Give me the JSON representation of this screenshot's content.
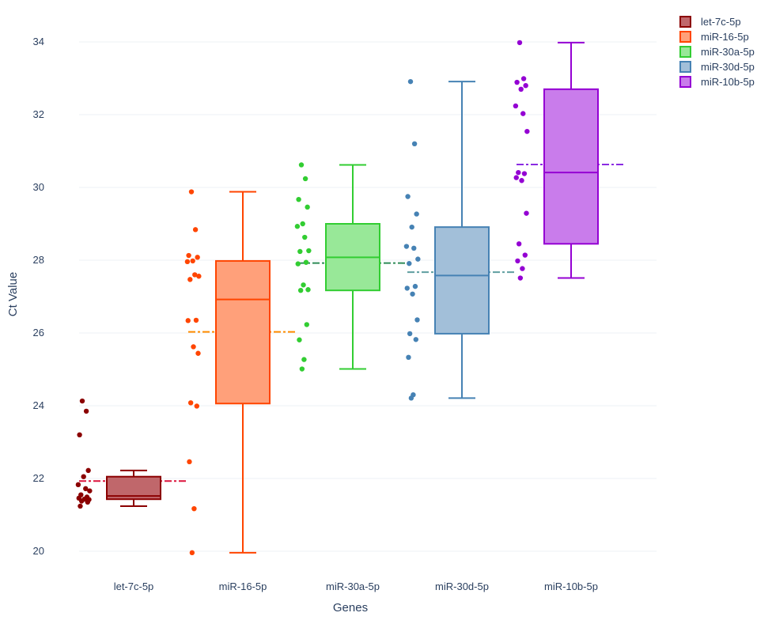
{
  "chart_data": {
    "type": "box",
    "xlabel": "Genes",
    "ylabel": "Ct Value",
    "ylim": [
      19.5,
      34.6
    ],
    "yticks": [
      20,
      22,
      24,
      26,
      28,
      30,
      32,
      34
    ],
    "categories": [
      "let-7c-5p",
      "miR-16-5p",
      "miR-30a-5p",
      "miR-30d-5p",
      "miR-10b-5p"
    ],
    "boxpoints": "all",
    "mean_line": "dash-dot",
    "grid": true,
    "legend": "top-right",
    "series": [
      {
        "name": "let-7c-5p",
        "color": "#8b0000",
        "fill": "#c0676b",
        "mean_color": "#dc143c",
        "stats": {
          "min": 21.24,
          "q1": 21.43,
          "median": 21.52,
          "q3": 22.05,
          "max": 22.22,
          "mean": 21.93
        },
        "points": [
          24.13,
          23.85,
          23.2,
          22.22,
          22.05,
          21.83,
          21.72,
          21.66,
          21.55,
          21.49,
          21.46,
          21.43,
          21.42,
          21.38,
          21.35,
          21.24
        ]
      },
      {
        "name": "miR-16-5p",
        "color": "#ff4500",
        "fill": "#ffa07a",
        "mean_color": "#ff8c00",
        "stats": {
          "min": 19.96,
          "q1": 24.06,
          "median": 26.92,
          "q3": 27.98,
          "max": 29.88,
          "mean": 26.03
        },
        "points": [
          29.88,
          28.84,
          28.13,
          28.08,
          27.98,
          27.96,
          27.6,
          27.56,
          27.47,
          26.35,
          26.34,
          25.62,
          25.44,
          24.08,
          23.99,
          22.46,
          21.17,
          19.96
        ]
      },
      {
        "name": "miR-30a-5p",
        "color": "#32cd32",
        "fill": "#98e898",
        "mean_color": "#2e8b57",
        "stats": {
          "min": 25.01,
          "q1": 27.17,
          "median": 28.08,
          "q3": 29.0,
          "max": 30.62,
          "mean": 27.92
        },
        "points": [
          30.62,
          30.24,
          29.67,
          29.46,
          29.0,
          28.93,
          28.63,
          28.26,
          28.24,
          27.94,
          27.9,
          27.32,
          27.19,
          27.17,
          26.23,
          25.81,
          25.27,
          25.01
        ]
      },
      {
        "name": "miR-30d-5p",
        "color": "#4682b4",
        "fill": "#a2bfd9",
        "mean_color": "#5f9ea0",
        "stats": {
          "min": 24.21,
          "q1": 25.98,
          "median": 27.58,
          "q3": 28.91,
          "max": 32.91,
          "mean": 27.67
        },
        "points": [
          32.91,
          31.2,
          29.75,
          29.27,
          28.91,
          28.38,
          28.33,
          28.03,
          27.91,
          27.28,
          27.23,
          27.07,
          26.36,
          25.98,
          25.82,
          25.33,
          24.3,
          24.21
        ]
      },
      {
        "name": "miR-10b-5p",
        "color": "#9400d3",
        "fill": "#c97ceb",
        "mean_color": "#8a2be2",
        "stats": {
          "min": 27.51,
          "q1": 28.45,
          "median": 30.41,
          "q3": 32.7,
          "max": 33.98,
          "mean": 30.63
        },
        "points": [
          33.98,
          32.99,
          32.89,
          32.8,
          32.7,
          32.24,
          32.03,
          31.54,
          30.41,
          30.38,
          30.27,
          30.19,
          29.29,
          28.45,
          28.14,
          27.98,
          27.77,
          27.51
        ]
      }
    ]
  }
}
